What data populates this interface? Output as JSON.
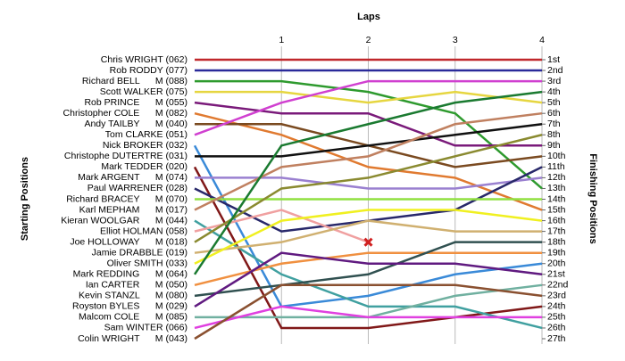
{
  "chart_data": {
    "type": "line",
    "title": "Laps",
    "ylabel": "Starting Positions",
    "y2label": "Finishing Positions",
    "xlim": [
      0,
      4
    ],
    "xticks": [
      1,
      2,
      3,
      4
    ],
    "ylim": [
      1,
      27
    ],
    "finishing_positions": [
      "1st",
      "2nd",
      "3rd",
      "4th",
      "5th",
      "6th",
      "7th",
      "8th",
      "9th",
      "10th",
      "11th",
      "12th",
      "13th",
      "14th",
      "15th",
      "16th",
      "17th",
      "18th",
      "19th",
      "20th",
      "21st",
      "22nd",
      "23rd",
      "24th",
      "25th",
      "26th",
      "27th"
    ],
    "x": [
      0,
      1,
      2,
      3,
      4
    ],
    "series": [
      {
        "name": "Chris WRIGHT (062)",
        "color": "#c0282c",
        "values": [
          1,
          1,
          1,
          1,
          1
        ]
      },
      {
        "name": "Rob RODDY (077)",
        "color": "#2a2a9a",
        "values": [
          2,
          2,
          2,
          2,
          2
        ]
      },
      {
        "name": "Richard BELL      M (088)",
        "color": "#2e9a2e",
        "values": [
          3,
          3,
          4,
          6,
          13
        ]
      },
      {
        "name": "Scott WALKER (075)",
        "color": "#e6d640",
        "values": [
          4,
          4,
          5,
          4,
          5
        ]
      },
      {
        "name": "Rob PRINCE      M (055)",
        "color": "#7a1a7a",
        "values": [
          5,
          6,
          6,
          9,
          9
        ]
      },
      {
        "name": "Christopher COLE      M (082)",
        "color": "#e07a30",
        "values": [
          6,
          8,
          11,
          12,
          15
        ]
      },
      {
        "name": "Andy TAILBY      M (040)",
        "color": "#7a4a20",
        "values": [
          7,
          7,
          9,
          11,
          10
        ]
      },
      {
        "name": "Tom CLARKE (051)",
        "color": "#d040d0",
        "values": [
          8,
          5,
          3,
          3,
          3
        ]
      },
      {
        "name": "Nick BROKER (032)",
        "color": "#3a8ad8",
        "values": [
          9,
          24,
          23,
          21,
          20
        ]
      },
      {
        "name": "Christophe DUTERTRE (031)",
        "color": "#101010",
        "values": [
          10,
          10,
          9,
          8,
          7
        ]
      },
      {
        "name": "Mark TEDDER (020)",
        "color": "#801818",
        "values": [
          11,
          26,
          26,
          25,
          24
        ]
      },
      {
        "name": "Mark ARGENT      M (074)",
        "color": "#9a80d0",
        "values": [
          12,
          12,
          13,
          13,
          12
        ]
      },
      {
        "name": "Paul WARRENER (028)",
        "color": "#28286a",
        "values": [
          13,
          17,
          16,
          15,
          11
        ]
      },
      {
        "name": "Richard BRACEY      M (070)",
        "color": "#90e040",
        "values": [
          14,
          14,
          14,
          14,
          14
        ]
      },
      {
        "name": "Karl MEPHAM      M (017)",
        "color": "#c08060",
        "values": [
          15,
          11,
          10,
          7,
          6
        ]
      },
      {
        "name": "Kieran WOOLGAR      M (044)",
        "color": "#40a0a0",
        "values": [
          16,
          21,
          24,
          24,
          26
        ]
      },
      {
        "name": "Elliot HOLMAN (058)",
        "color": "#f0a0a0",
        "values": [
          17,
          15,
          18,
          null,
          null
        ]
      },
      {
        "name": "Joe HOLLOWAY      M (018)",
        "color": "#8a8a30",
        "values": [
          18,
          13,
          12,
          10,
          8
        ]
      },
      {
        "name": "Jamie DRABBLE (019)",
        "color": "#d0b070",
        "values": [
          19,
          18,
          16,
          17,
          17
        ]
      },
      {
        "name": "Oliver SMITH (033)",
        "color": "#f0f020",
        "values": [
          20,
          16,
          15,
          15,
          16
        ]
      },
      {
        "name": "Mark REDDING      M (064)",
        "color": "#1a7a30",
        "values": [
          21,
          9,
          7,
          5,
          4
        ]
      },
      {
        "name": "Ian CARTER      M (050)",
        "color": "#f09040",
        "values": [
          22,
          20,
          19,
          19,
          19
        ]
      },
      {
        "name": "Kevin STANZL      M (080)",
        "color": "#305050",
        "values": [
          23,
          22,
          21,
          18,
          18
        ]
      },
      {
        "name": "Royston BYLES      M (029)",
        "color": "#601a80",
        "values": [
          24,
          19,
          20,
          20,
          21
        ]
      },
      {
        "name": "Malcom COLE      M (085)",
        "color": "#70b0a0",
        "values": [
          25,
          25,
          25,
          23,
          22
        ]
      },
      {
        "name": "Sam WINTER (066)",
        "color": "#e040e0",
        "values": [
          26,
          24,
          25,
          25,
          25
        ]
      },
      {
        "name": "Colin WRIGHT      M (043)",
        "color": "#8a5030",
        "values": [
          27,
          22,
          22,
          22,
          23
        ]
      }
    ]
  }
}
